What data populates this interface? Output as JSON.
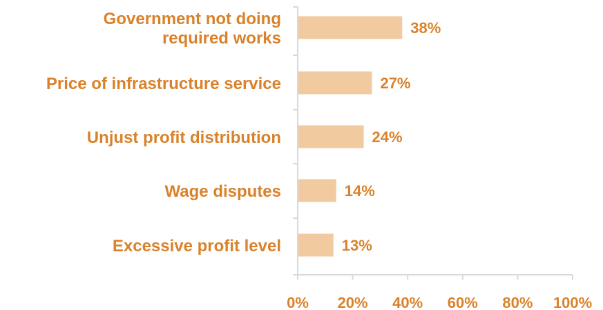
{
  "chart_data": {
    "type": "bar",
    "orientation": "horizontal",
    "categories": [
      [
        "Government not doing",
        "required works"
      ],
      [
        "Price of infrastructure service"
      ],
      [
        "Unjust profit distribution"
      ],
      [
        "Wage disputes"
      ],
      [
        "Excessive profit level"
      ]
    ],
    "values": [
      38,
      27,
      24,
      14,
      13
    ],
    "value_labels": [
      "38%",
      "27%",
      "24%",
      "14%",
      "13%"
    ],
    "x_ticks": [
      "0%",
      "20%",
      "40%",
      "60%",
      "80%",
      "100%"
    ],
    "xlim": [
      0,
      100
    ],
    "bar_color": "#f2caa0",
    "text_color": "#d9822b",
    "axis_color": "#d9d9d9",
    "grid": false
  }
}
